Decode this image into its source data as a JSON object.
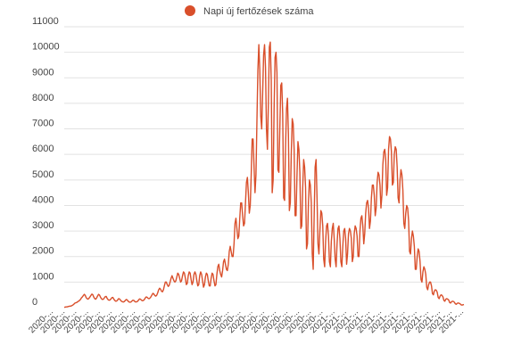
{
  "chart_data": {
    "type": "line",
    "legend": {
      "label": "Napi új fertőzések száma",
      "placement": "top-center"
    },
    "series": [
      {
        "name": "Napi új fertőzések száma",
        "color": "#d94f2b",
        "values": [
          10,
          20,
          30,
          30,
          40,
          50,
          60,
          60,
          80,
          100,
          130,
          170,
          190,
          200,
          230,
          250,
          280,
          320,
          380,
          420,
          470,
          520,
          480,
          390,
          350,
          330,
          370,
          420,
          480,
          530,
          500,
          410,
          350,
          330,
          380,
          460,
          520,
          490,
          410,
          350,
          320,
          330,
          380,
          430,
          440,
          360,
          310,
          290,
          300,
          340,
          390,
          400,
          330,
          280,
          250,
          260,
          300,
          350,
          340,
          290,
          250,
          230,
          220,
          240,
          280,
          320,
          300,
          250,
          220,
          210,
          220,
          260,
          290,
          280,
          240,
          220,
          230,
          250,
          300,
          340,
          330,
          290,
          270,
          280,
          320,
          380,
          420,
          400,
          360,
          350,
          380,
          430,
          500,
          560,
          530,
          470,
          450,
          490,
          580,
          700,
          760,
          720,
          640,
          620,
          700,
          860,
          1000,
          1000,
          900,
          830,
          870,
          1000,
          1150,
          1250,
          1150,
          1050,
          1000,
          1050,
          1200,
          1350,
          1300,
          1150,
          1000,
          1050,
          1250,
          1400,
          1350,
          1150,
          900,
          950,
          1250,
          1400,
          1350,
          1100,
          900,
          1000,
          1300,
          1400,
          1300,
          1050,
          850,
          900,
          1250,
          1400,
          1300,
          1050,
          800,
          900,
          1200,
          1350,
          1300,
          1050,
          850,
          850,
          1150,
          1350,
          1300,
          1050,
          850,
          900,
          1300,
          1600,
          1700,
          1450,
          1300,
          1200,
          1450,
          1800,
          1900,
          1700,
          1500,
          1450,
          1700,
          2200,
          2400,
          2200,
          2000,
          2000,
          2500,
          3300,
          3500,
          3100,
          2700,
          2800,
          3500,
          4100,
          4100,
          3600,
          3200,
          3300,
          4100,
          4900,
          5100,
          4500,
          3700,
          4000,
          5200,
          6600,
          6600,
          5500,
          4500,
          5200,
          7300,
          9300,
          10300,
          9300,
          7500,
          7000,
          8400,
          9900,
          10300,
          9400,
          7000,
          6200,
          8000,
          10200,
          10400,
          8900,
          4500,
          5000,
          7800,
          9800,
          10000,
          9200,
          5400,
          5300,
          7000,
          8700,
          8800,
          7600,
          4300,
          4200,
          6300,
          7800,
          8200,
          6800,
          3800,
          4100,
          6000,
          7400,
          7200,
          6200,
          3600,
          3600,
          5200,
          6500,
          6200,
          5300,
          3100,
          3200,
          4700,
          5800,
          5500,
          4700,
          2300,
          2500,
          4100,
          5000,
          4800,
          4100,
          2100,
          1500,
          3600,
          5500,
          5800,
          4300,
          2500,
          2100,
          3000,
          3800,
          3700,
          3200,
          1900,
          1600,
          2600,
          3200,
          3300,
          2800,
          1800,
          1600,
          2600,
          3100,
          3300,
          2700,
          1900,
          1600,
          2500,
          3100,
          3200,
          2700,
          1800,
          1600,
          2400,
          3000,
          3100,
          2700,
          1700,
          2100,
          2900,
          3100,
          3000,
          2700,
          1800,
          2000,
          2900,
          3200,
          3100,
          2800,
          2000,
          2000,
          3000,
          3500,
          3600,
          3200,
          2500,
          2900,
          3700,
          4100,
          4200,
          3900,
          3100,
          3400,
          4300,
          4800,
          4800,
          4400,
          3600,
          3900,
          4900,
          5300,
          5200,
          4800,
          3900,
          4400,
          5600,
          6100,
          6200,
          5800,
          4400,
          4700,
          6200,
          6700,
          6600,
          6100,
          4800,
          4900,
          6000,
          6300,
          6200,
          5500,
          4300,
          4100,
          5000,
          5400,
          5200,
          4600,
          3300,
          3100,
          3700,
          4000,
          3900,
          3400,
          2200,
          2100,
          2700,
          3000,
          2800,
          2400,
          1500,
          1500,
          2000,
          2300,
          2200,
          1800,
          1100,
          1000,
          1400,
          1600,
          1500,
          1300,
          800,
          700,
          900,
          1000,
          1000,
          850,
          550,
          500,
          650,
          700,
          680,
          600,
          400,
          350,
          450,
          500,
          480,
          420,
          280,
          250,
          330,
          350,
          330,
          300,
          200,
          180,
          230,
          250,
          240,
          210,
          150,
          130,
          170,
          180,
          170,
          150,
          110,
          100,
          110,
          120
        ]
      }
    ],
    "x_ticks": [
      "2020-...",
      "2020-...",
      "2020-...",
      "2020-...",
      "2020-...",
      "2020-...",
      "2020-...",
      "2020-...",
      "2020-...",
      "2020-...",
      "2020-...",
      "2020-...",
      "2020-...",
      "2020-...",
      "2020-...",
      "2020-...",
      "2020-...",
      "2020-...",
      "2020-...",
      "2020-...",
      "2020-...",
      "2020-...",
      "2020-...",
      "2020-...",
      "2021-...",
      "2021-...",
      "2021-...",
      "2021-...",
      "2021-...",
      "2021-...",
      "2021-...",
      "2021-...",
      "2021-...",
      "2021-...",
      "2021-...",
      "2021-..."
    ],
    "y_ticks": [
      0,
      1000,
      2000,
      3000,
      4000,
      5000,
      6000,
      7000,
      8000,
      9000,
      10000,
      11000
    ],
    "ylim": [
      0,
      11000
    ],
    "grid": true
  }
}
